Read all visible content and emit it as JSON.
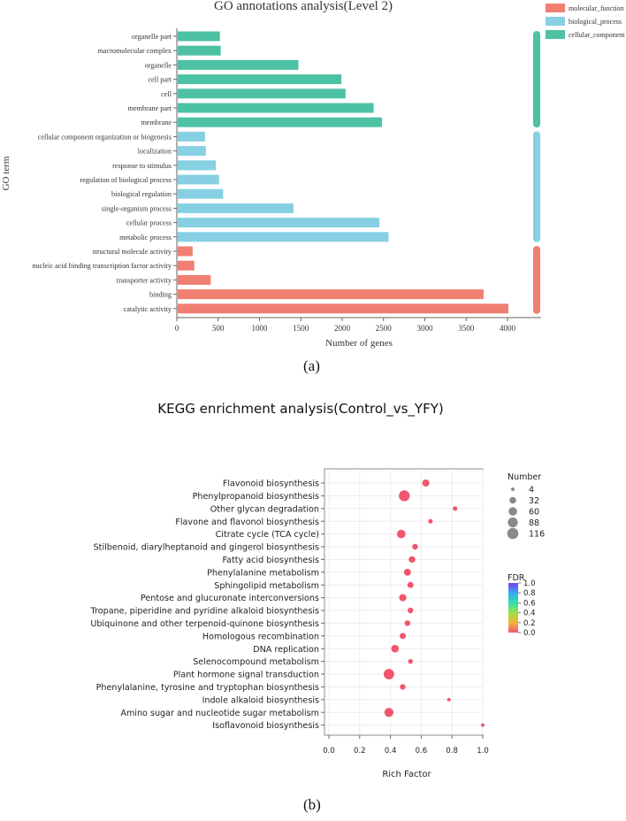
{
  "chart_data": [
    {
      "type": "bar",
      "orientation": "horizontal",
      "title": "GO annotations analysis(Level 2)",
      "xlabel": "Number of genes",
      "ylabel": "GO term",
      "xlim": [
        0,
        4400
      ],
      "xticks": [
        "0",
        "500",
        "1000",
        "1500",
        "2000",
        "2500",
        "3000",
        "3500",
        "4000"
      ],
      "legend_position": "top-right",
      "legend": [
        {
          "name": "molecular_function",
          "color": "#f07f71"
        },
        {
          "name": "biological_process",
          "color": "#87d0e3"
        },
        {
          "name": "cellular_component",
          "color": "#4dc1a3"
        }
      ],
      "categories": [
        "organelle part",
        "macromolecular complex",
        "organelle",
        "cell part",
        "cell",
        "membrane part",
        "membrane",
        "cellular component organization or biogenesis",
        "localization",
        "response to stimulus",
        "regulation of biological process",
        "biological regulation",
        "single-organism process",
        "cellular process",
        "metabolic process",
        "structural molecule activity",
        "nucleic acid binding transcription factor activity",
        "transporter activity",
        "binding",
        "catalytic activity"
      ],
      "values": [
        510,
        520,
        1460,
        1980,
        2030,
        2370,
        2470,
        330,
        340,
        460,
        500,
        550,
        1400,
        2440,
        2550,
        180,
        200,
        400,
        3700,
        4000
      ],
      "groups": [
        "cellular_component",
        "cellular_component",
        "cellular_component",
        "cellular_component",
        "cellular_component",
        "cellular_component",
        "cellular_component",
        "biological_process",
        "biological_process",
        "biological_process",
        "biological_process",
        "biological_process",
        "biological_process",
        "biological_process",
        "biological_process",
        "molecular_function",
        "molecular_function",
        "molecular_function",
        "molecular_function",
        "molecular_function"
      ]
    },
    {
      "type": "scatter",
      "title": "KEGG enrichment analysis(Control_vs_YFY)",
      "xlabel": "Rich Factor",
      "ylabel": "",
      "xlim": [
        0,
        1
      ],
      "xticks": [
        "0.0",
        "0.2",
        "0.4",
        "0.6",
        "0.8",
        "1.0"
      ],
      "grid": true,
      "categories": [
        "Flavonoid biosynthesis",
        "Phenylpropanoid biosynthesis",
        "Other glycan degradation",
        "Flavone and flavonol biosynthesis",
        "Citrate cycle (TCA cycle)",
        "Stilbenoid, diarylheptanoid and gingerol biosynthesis",
        "Fatty acid biosynthesis",
        "Phenylalanine metabolism",
        "Sphingolipid metabolism",
        "Pentose and glucuronate interconversions",
        "Tropane, piperidine and pyridine alkaloid biosynthesis",
        "Ubiquinone and other terpenoid-quinone biosynthesis",
        "Homologous recombination",
        "DNA replication",
        "Selenocompound metabolism",
        "Plant hormone signal transduction",
        "Phenylalanine, tyrosine and tryptophan biosynthesis",
        "Indole alkaloid biosynthesis",
        "Amino sugar and nucleotide sugar metabolism",
        "Isoflavonoid biosynthesis"
      ],
      "rich_factor": [
        0.63,
        0.49,
        0.82,
        0.66,
        0.47,
        0.56,
        0.54,
        0.51,
        0.53,
        0.48,
        0.53,
        0.51,
        0.48,
        0.43,
        0.53,
        0.39,
        0.48,
        0.78,
        0.39,
        1.0
      ],
      "number": [
        38,
        110,
        10,
        10,
        60,
        20,
        30,
        35,
        25,
        40,
        20,
        20,
        25,
        45,
        12,
        100,
        20,
        4,
        70,
        4
      ],
      "fdr": [
        0,
        0,
        0,
        0,
        0,
        0,
        0,
        0,
        0,
        0,
        0,
        0,
        0,
        0,
        0,
        0,
        0,
        0,
        0,
        0
      ],
      "size_legend": {
        "title": "Number",
        "labels": [
          "4",
          "32",
          "60",
          "88",
          "116"
        ]
      },
      "color_legend": {
        "title": "FDR",
        "labels": [
          "1.0",
          "0.8",
          "0.6",
          "0.4",
          "0.2",
          "0.0"
        ]
      }
    }
  ],
  "captions": {
    "a": "(a)",
    "b": "(b)"
  }
}
